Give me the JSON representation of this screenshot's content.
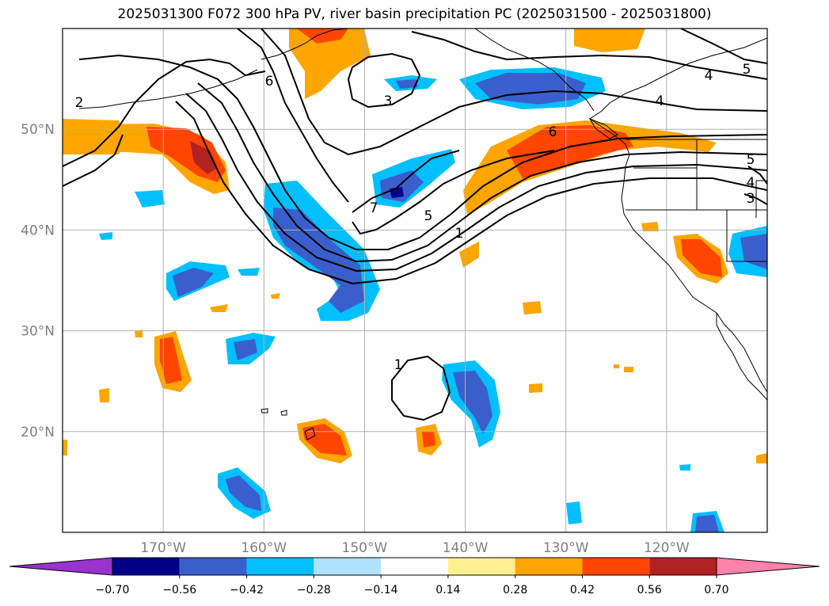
{
  "title": "2025031300 F072 300 hPa PV, river basin precipitation PC (2025031500 - 2025031800)",
  "map": {
    "lon_range": [
      -180,
      -110
    ],
    "lat_range": [
      10,
      60
    ],
    "gridlines": true,
    "lat_ticks": [
      {
        "value": 20,
        "label": "20°N"
      },
      {
        "value": 30,
        "label": "30°N"
      },
      {
        "value": 40,
        "label": "40°N"
      },
      {
        "value": 50,
        "label": "50°N"
      }
    ],
    "lon_ticks": [
      {
        "value": -170,
        "label": "170°W"
      },
      {
        "value": -160,
        "label": "160°W"
      },
      {
        "value": -150,
        "label": "150°W"
      },
      {
        "value": -140,
        "label": "140°W"
      },
      {
        "value": -130,
        "label": "130°W"
      },
      {
        "value": -120,
        "label": "120°W"
      }
    ]
  },
  "colorbar": {
    "colors": [
      "#9a32cd",
      "#00008b",
      "#3a5fcd",
      "#00bfff",
      "#b0e2ff",
      "#ffffff",
      "#fff08f",
      "#ffa500",
      "#ff4500",
      "#b22222",
      "#ff82ab"
    ],
    "tick_labels": [
      "−0.70",
      "−0.56",
      "−0.42",
      "−0.28",
      "−0.14",
      "0.14",
      "0.28",
      "0.42",
      "0.56",
      "0.70"
    ],
    "extend": "both"
  },
  "contour_labels": [
    "6",
    "3",
    "7",
    "5",
    "1",
    "6",
    "4",
    "4",
    "5",
    "5",
    "4",
    "3",
    "1",
    "2"
  ],
  "colors": {
    "grid": "#b0b0b0",
    "coast": "#000000",
    "contour": "#000000"
  }
}
